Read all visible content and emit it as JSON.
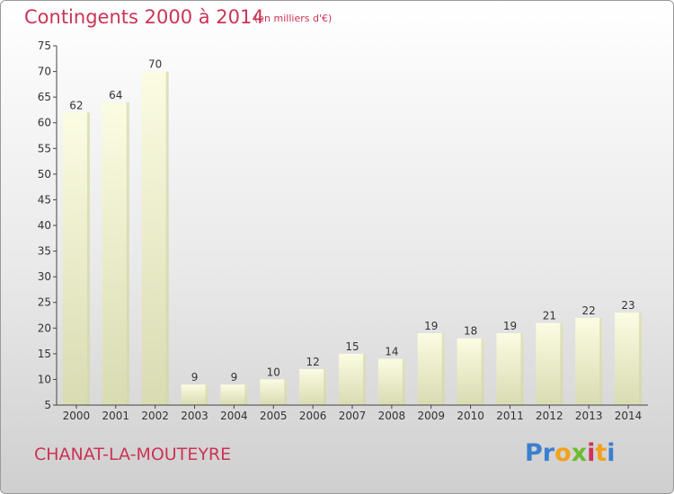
{
  "title": "Contingents 2000 à 2014",
  "subtitle": "(en milliers d'€)",
  "commune": "CHANAT-LA-MOUTEYRE",
  "logo": {
    "letters": [
      "P",
      "r",
      "o",
      "x",
      "i",
      "t",
      "i"
    ],
    "colors": [
      "#3b7fcf",
      "#3b7fcf",
      "#f2a21b",
      "#6dbb2d",
      "#cc3355",
      "#f2a21b",
      "#3b7fcf"
    ]
  },
  "chart_data": {
    "type": "bar",
    "title": "Contingents 2000 à 2014",
    "subtitle": "(en milliers d'€)",
    "categories": [
      "2000",
      "2001",
      "2002",
      "2003",
      "2004",
      "2005",
      "2006",
      "2007",
      "2008",
      "2009",
      "2010",
      "2011",
      "2012",
      "2013",
      "2014"
    ],
    "values": [
      62,
      64,
      70,
      9,
      9,
      10,
      12,
      15,
      14,
      19,
      18,
      19,
      21,
      22,
      23
    ],
    "ylim": [
      5,
      75
    ],
    "yticks": [
      5,
      10,
      15,
      20,
      25,
      30,
      35,
      40,
      45,
      50,
      55,
      60,
      65,
      70,
      75
    ],
    "grid": false,
    "legend": "none",
    "bar_color": "#f7f9d2",
    "bar_shade": "#d4d6ad"
  }
}
